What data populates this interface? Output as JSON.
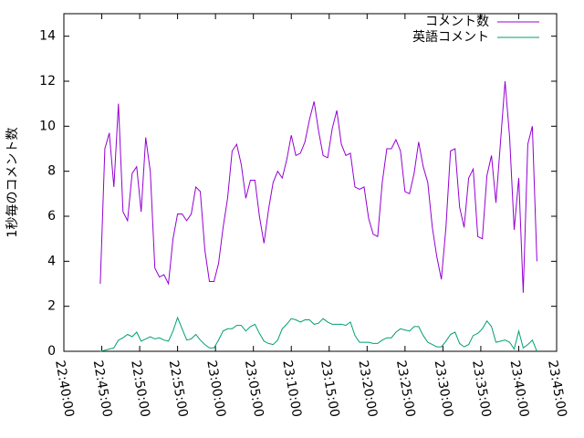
{
  "chart_data": {
    "type": "line",
    "ylabel": "1秒毎のコメント数",
    "x": [
      "22:44:48",
      "22:45:24",
      "22:46:00",
      "22:46:36",
      "22:47:12",
      "22:47:48",
      "22:48:24",
      "22:49:00",
      "22:49:36",
      "22:50:12",
      "22:50:48",
      "22:51:24",
      "22:52:00",
      "22:52:36",
      "22:53:12",
      "22:53:48",
      "22:54:24",
      "22:55:00",
      "22:55:36",
      "22:56:12",
      "22:56:48",
      "22:57:24",
      "22:58:00",
      "22:58:36",
      "22:59:12",
      "22:59:48",
      "23:00:24",
      "23:01:00",
      "23:01:36",
      "23:02:12",
      "23:02:48",
      "23:03:24",
      "23:04:00",
      "23:04:36",
      "23:05:12",
      "23:05:48",
      "23:06:24",
      "23:07:00",
      "23:07:36",
      "23:08:12",
      "23:08:48",
      "23:09:24",
      "23:10:00",
      "23:10:36",
      "23:11:12",
      "23:11:48",
      "23:12:24",
      "23:13:00",
      "23:13:36",
      "23:14:12",
      "23:14:48",
      "23:15:24",
      "23:16:00",
      "23:16:36",
      "23:17:12",
      "23:17:48",
      "23:18:24",
      "23:19:00",
      "23:19:36",
      "23:20:12",
      "23:20:48",
      "23:21:24",
      "23:22:00",
      "23:22:36",
      "23:23:12",
      "23:23:48",
      "23:24:24",
      "23:25:00",
      "23:25:36",
      "23:26:12",
      "23:26:48",
      "23:27:24",
      "23:28:00",
      "23:28:36",
      "23:29:12",
      "23:29:48",
      "23:30:24",
      "23:31:00",
      "23:31:36",
      "23:32:12",
      "23:32:48",
      "23:33:24",
      "23:34:00",
      "23:34:36",
      "23:35:12",
      "23:35:48",
      "23:36:24",
      "23:37:00",
      "23:37:36",
      "23:38:12",
      "23:38:48",
      "23:39:24",
      "23:40:00",
      "23:40:36",
      "23:41:12",
      "23:41:48",
      "23:42:24"
    ],
    "series": [
      {
        "name": "コメント数",
        "color": "#9400d3",
        "values": [
          3.0,
          9.0,
          9.7,
          7.3,
          11.0,
          6.2,
          5.8,
          7.9,
          8.2,
          6.2,
          9.5,
          8.0,
          3.7,
          3.3,
          3.4,
          3.0,
          5.0,
          6.1,
          6.1,
          5.8,
          6.1,
          7.3,
          7.1,
          4.5,
          3.1,
          3.1,
          3.9,
          5.5,
          6.8,
          8.9,
          9.2,
          8.3,
          6.8,
          7.6,
          7.6,
          6.0,
          4.8,
          6.3,
          7.5,
          8.0,
          7.7,
          8.5,
          9.6,
          8.7,
          8.8,
          9.3,
          10.3,
          11.1,
          9.8,
          8.7,
          8.6,
          9.9,
          10.7,
          9.2,
          8.7,
          8.8,
          7.3,
          7.2,
          7.3,
          5.9,
          5.2,
          5.1,
          7.5,
          9.0,
          9.0,
          9.4,
          8.9,
          7.1,
          7.0,
          7.9,
          9.3,
          8.2,
          7.5,
          5.5,
          4.2,
          3.2,
          5.5,
          8.9,
          9.0,
          6.4,
          5.5,
          7.7,
          8.1,
          5.1,
          5.0,
          7.8,
          8.7,
          6.6,
          9.3,
          12.0,
          9.5,
          5.4,
          7.7,
          2.6,
          9.2,
          10.0,
          4.0
        ]
      },
      {
        "name": "英語コメント",
        "color": "#009e73",
        "values": [
          0,
          0.05,
          0.1,
          0.15,
          0.5,
          0.6,
          0.75,
          0.65,
          0.85,
          0.45,
          0.55,
          0.65,
          0.55,
          0.6,
          0.5,
          0.45,
          0.9,
          1.5,
          1.0,
          0.5,
          0.55,
          0.75,
          0.5,
          0.3,
          0.15,
          0.15,
          0.5,
          0.9,
          1.0,
          1.0,
          1.15,
          1.15,
          0.9,
          1.1,
          1.2,
          0.8,
          0.45,
          0.35,
          0.3,
          0.5,
          1.0,
          1.2,
          1.45,
          1.4,
          1.3,
          1.4,
          1.4,
          1.2,
          1.25,
          1.45,
          1.3,
          1.2,
          1.2,
          1.2,
          1.15,
          1.3,
          0.7,
          0.4,
          0.4,
          0.4,
          0.35,
          0.35,
          0.5,
          0.6,
          0.6,
          0.85,
          1.0,
          0.95,
          0.9,
          1.1,
          1.1,
          0.7,
          0.4,
          0.3,
          0.2,
          0.2,
          0.45,
          0.75,
          0.85,
          0.35,
          0.2,
          0.3,
          0.7,
          0.8,
          1.0,
          1.35,
          1.1,
          0.4,
          0.45,
          0.5,
          0.4,
          0.1,
          0.9,
          0.15,
          0.3,
          0.5,
          0
        ]
      }
    ],
    "xlim": [
      "22:40:00",
      "23:45:00"
    ],
    "xticks": [
      "22:40:00",
      "22:45:00",
      "22:50:00",
      "22:55:00",
      "23:00:00",
      "23:05:00",
      "23:10:00",
      "23:15:00",
      "23:20:00",
      "23:25:00",
      "23:30:00",
      "23:35:00",
      "23:40:00",
      "23:45:00"
    ],
    "ylim": [
      0,
      15
    ],
    "yticks": [
      0,
      2,
      4,
      6,
      8,
      10,
      12,
      14
    ],
    "legend": "top-right"
  }
}
